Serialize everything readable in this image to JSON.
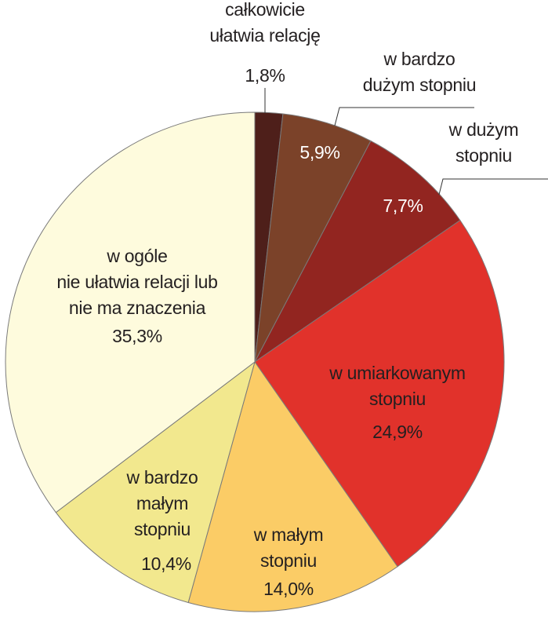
{
  "chart_data": {
    "type": "pie",
    "title": "",
    "slices": [
      {
        "label": "całkowicie ułatwia relację",
        "label_lines": [
          "całkowicie",
          "ułatwia relację"
        ],
        "value": 1.8,
        "value_label": "1,8%",
        "color": "#4e1f1a"
      },
      {
        "label": "w bardzo dużym stopniu",
        "label_lines": [
          "w bardzo",
          "dużym stopniu"
        ],
        "value": 5.9,
        "value_label": "5,9%",
        "color": "#7b4229"
      },
      {
        "label": "w dużym stopniu",
        "label_lines": [
          "w dużym",
          "stopniu"
        ],
        "value": 7.7,
        "value_label": "7,7%",
        "color": "#922520"
      },
      {
        "label": "w umiarkowanym stopniu",
        "label_lines": [
          "w umiarkowanym",
          "stopniu"
        ],
        "value": 24.9,
        "value_label": "24,9%",
        "color": "#e1322b"
      },
      {
        "label": "w małym stopniu",
        "label_lines": [
          "w małym",
          "stopniu"
        ],
        "value": 14.0,
        "value_label": "14,0%",
        "color": "#fbcc66"
      },
      {
        "label": "w bardzo małym stopniu",
        "label_lines": [
          "w bardzo",
          "małym",
          "stopniu"
        ],
        "value": 10.4,
        "value_label": "10,4%",
        "color": "#f2e88e"
      },
      {
        "label": "w ogóle nie ułatwia relacji lub nie ma znaczenia",
        "label_lines": [
          "w ogóle",
          "nie ułatwia relacji lub",
          "nie ma znaczenia"
        ],
        "value": 35.3,
        "value_label": "35,3%",
        "color": "#fefbdd"
      }
    ],
    "start_angle_deg": 0,
    "direction": "clockwise"
  }
}
